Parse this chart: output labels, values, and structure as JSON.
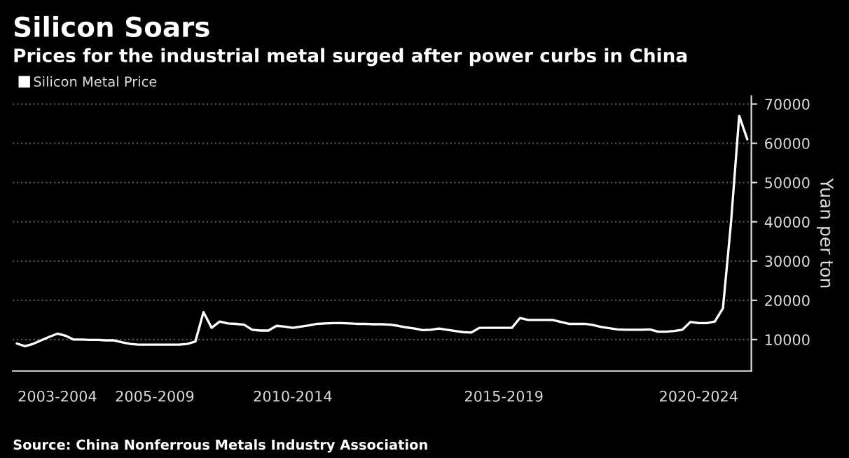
{
  "chart_data": {
    "type": "line",
    "title": "Silicon Soars",
    "subtitle": "Prices for the industrial metal surged after power curbs in China",
    "ylabel": "Yuan per ton",
    "annotations": [
      "Source: China Nonferrous Metals Industry Association"
    ],
    "categories": [
      null,
      null,
      null,
      null,
      null,
      "2003-2004",
      null,
      null,
      null,
      null,
      null,
      null,
      null,
      null,
      null,
      null,
      null,
      "2005-2009",
      null,
      null,
      null,
      null,
      null,
      null,
      null,
      null,
      null,
      null,
      null,
      null,
      null,
      null,
      null,
      null,
      "2010-2014",
      null,
      null,
      null,
      null,
      null,
      null,
      null,
      null,
      null,
      null,
      null,
      null,
      null,
      null,
      null,
      null,
      null,
      null,
      null,
      null,
      null,
      null,
      null,
      null,
      null,
      "2015-2019",
      null,
      null,
      null,
      null,
      null,
      null,
      null,
      null,
      null,
      null,
      null,
      null,
      null,
      null,
      null,
      null,
      null,
      null,
      null,
      null,
      null,
      null,
      null,
      "2020-2024",
      null,
      null,
      null,
      null,
      null,
      null
    ],
    "series": [
      {
        "name": "Silicon Metal Price",
        "color": "#ffffff",
        "values": [
          9000,
          8300,
          8900,
          9800,
          10700,
          11500,
          11000,
          10000,
          10000,
          9900,
          9900,
          9800,
          9800,
          9300,
          8900,
          8700,
          8700,
          8700,
          8700,
          8700,
          8700,
          8900,
          9500,
          17000,
          13000,
          14600,
          14100,
          14000,
          13800,
          12500,
          12300,
          12300,
          13500,
          13300,
          13000,
          13300,
          13600,
          14000,
          14100,
          14200,
          14200,
          14100,
          14000,
          14000,
          13900,
          13900,
          13800,
          13500,
          13100,
          12800,
          12400,
          12500,
          12800,
          12500,
          12200,
          11900,
          11800,
          13000,
          13000,
          13000,
          13000,
          13000,
          15500,
          15000,
          15000,
          15000,
          15000,
          14500,
          14000,
          14000,
          14000,
          13700,
          13200,
          12900,
          12600,
          12500,
          12500,
          12500,
          12600,
          12000,
          12000,
          12200,
          12500,
          14500,
          14200,
          14200,
          14600,
          18000,
          40000,
          67000,
          61000
        ]
      }
    ],
    "ylim": [
      2000,
      72000
    ],
    "yticks": [
      10000,
      20000,
      30000,
      40000,
      50000,
      60000,
      70000
    ],
    "grid": "y",
    "legend": "top left",
    "marker": "none",
    "line_style": "solid"
  }
}
